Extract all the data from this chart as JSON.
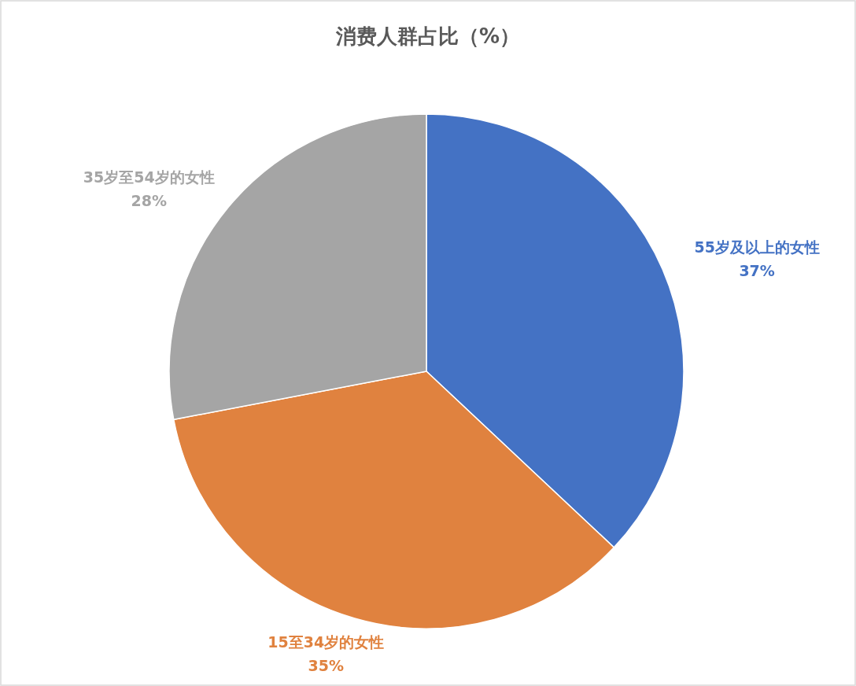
{
  "chart_data": {
    "type": "pie",
    "title": "消费人群占比（%）",
    "categories": [
      "55岁及以上的女性",
      "15至34岁的女性",
      "35岁至54岁的女性"
    ],
    "values": [
      37,
      35,
      28
    ],
    "colors": [
      "#4472c4",
      "#e0823f",
      "#a5a5a5"
    ],
    "value_labels": [
      "37%",
      "35%",
      "28%"
    ],
    "legend": false
  }
}
